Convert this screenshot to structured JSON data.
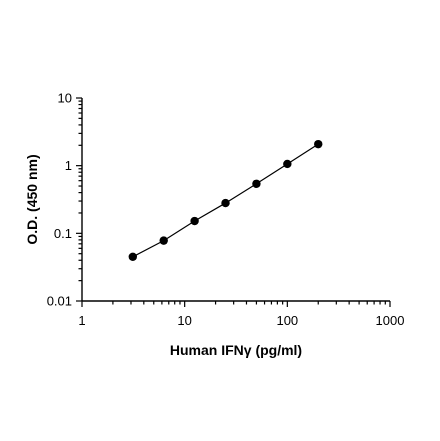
{
  "chart_data": {
    "type": "scatter",
    "xlabel": "Human IFNγ (pg/ml)",
    "ylabel": "O.D. (450 nm)",
    "x_scale": "log",
    "y_scale": "log",
    "xlim": [
      1,
      1000
    ],
    "ylim": [
      0.01,
      10
    ],
    "x_ticks": [
      1,
      10,
      100,
      1000
    ],
    "x_tick_labels": [
      "1",
      "10",
      "100",
      "1000"
    ],
    "y_ticks": [
      0.01,
      0.1,
      1,
      10
    ],
    "y_tick_labels": [
      "0.01",
      "0.1",
      "1",
      "10"
    ],
    "grid": false,
    "series": [
      {
        "x": [
          3.125,
          6.25,
          12.5,
          25,
          50,
          100,
          200
        ],
        "y": [
          0.045,
          0.078,
          0.152,
          0.28,
          0.54,
          1.06,
          2.08
        ],
        "marker": "circle",
        "line": "fit",
        "color": "#000000"
      }
    ]
  }
}
